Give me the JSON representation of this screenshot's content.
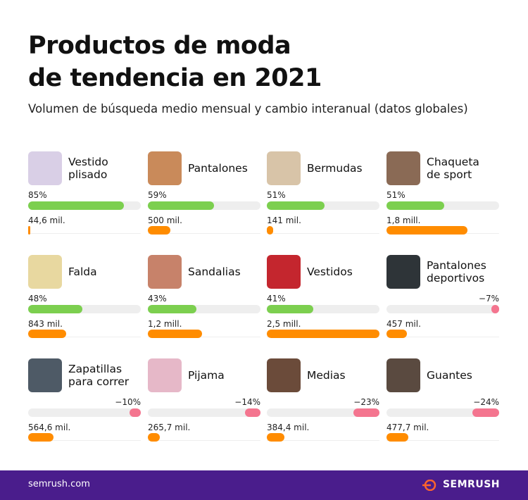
{
  "title": "Productos de moda\nde tendencia en 2021",
  "subtitle": "Volumen de búsqueda medio mensual y cambio interanual (datos globales)",
  "items": [
    {
      "name": "Vestido\nplisado",
      "change": 85,
      "change_label": "85%",
      "volume": 44.6,
      "volume_label": "44,6 mil."
    },
    {
      "name": "Pantalones",
      "change": 59,
      "change_label": "59%",
      "volume": 500,
      "volume_label": "500 mil."
    },
    {
      "name": "Bermudas",
      "change": 51,
      "change_label": "51%",
      "volume": 141,
      "volume_label": "141 mil."
    },
    {
      "name": "Chaqueta\nde sport",
      "change": 51,
      "change_label": "51%",
      "volume": 1800,
      "volume_label": "1,8 mill."
    },
    {
      "name": "Falda",
      "change": 48,
      "change_label": "48%",
      "volume": 843,
      "volume_label": "843 mil."
    },
    {
      "name": "Sandalias",
      "change": 43,
      "change_label": "43%",
      "volume": 1200,
      "volume_label": "1,2 mill."
    },
    {
      "name": "Vestidos",
      "change": 41,
      "change_label": "41%",
      "volume": 2500,
      "volume_label": "2,5 mill."
    },
    {
      "name": "Pantalones\ndeportivos",
      "change": -7,
      "change_label": "−7%",
      "volume": 457,
      "volume_label": "457 mil."
    },
    {
      "name": "Zapatillas\npara correr",
      "change": -10,
      "change_label": "−10%",
      "volume": 564.6,
      "volume_label": "564,6 mil."
    },
    {
      "name": "Pijama",
      "change": -14,
      "change_label": "−14%",
      "volume": 265.7,
      "volume_label": "265,7 mil."
    },
    {
      "name": "Medias",
      "change": -23,
      "change_label": "−23%",
      "volume": 384.4,
      "volume_label": "384,4 mil."
    },
    {
      "name": "Guantes",
      "change": -24,
      "change_label": "−24%",
      "volume": 477.7,
      "volume_label": "477,7 mil."
    }
  ],
  "footer": {
    "site": "semrush.com",
    "brand": "SEMRUSH"
  }
}
